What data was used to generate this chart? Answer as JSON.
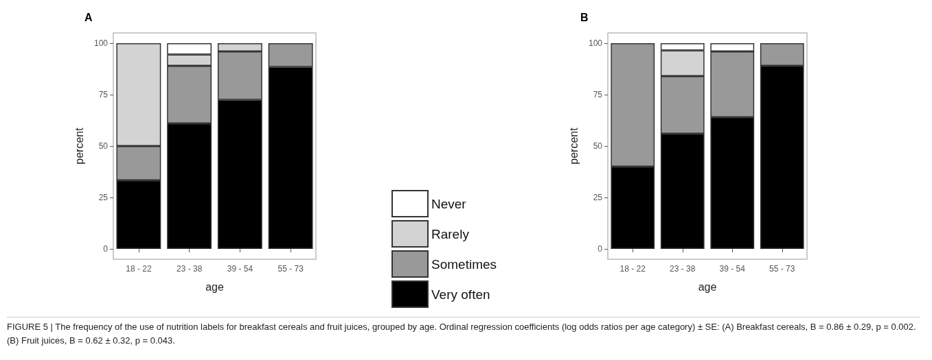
{
  "chart_data": [
    {
      "type": "bar",
      "title": "A",
      "xlabel": "age",
      "ylabel": "percent",
      "categories": [
        "18 - 22",
        "23 - 38",
        "39 - 54",
        "55 - 73"
      ],
      "stacked": true,
      "grid": false,
      "legend": "right",
      "series": [
        {
          "name": "Very often",
          "color": "#000000",
          "values": [
            33.3,
            61,
            72.5,
            88.5
          ]
        },
        {
          "name": "Sometimes",
          "color": "#999999",
          "values": [
            16.7,
            28,
            23.5,
            11.5
          ]
        },
        {
          "name": "Rarely",
          "color": "#d3d3d3",
          "values": [
            50,
            5.5,
            4,
            0
          ]
        },
        {
          "name": "Never",
          "color": "#ffffff",
          "values": [
            0,
            5.5,
            0,
            0
          ]
        }
      ],
      "ylim": [
        -5,
        105
      ],
      "yticks": [
        0,
        25,
        50,
        75,
        100
      ],
      "annotations": [
        "FIGURE 5 | The frequency of the use of nutrition labels for breakfast cereals and fruit juices, grouped by age. Ordinal regression coefficients (log odds ratios per age category) ± SE: (A) Breakfast cereals, B = 0.86 ± 0.29, p = 0.002. (B) Fruit juices, B = 0.62 ± 0.32, p = 0.043."
      ]
    },
    {
      "type": "bar",
      "title": "B",
      "xlabel": "age",
      "ylabel": "percent",
      "categories": [
        "18 - 22",
        "23 - 38",
        "39 - 54",
        "55 - 73"
      ],
      "stacked": true,
      "grid": false,
      "legend": false,
      "series": [
        {
          "color": "#000000",
          "values": [
            40,
            56,
            64,
            89
          ]
        },
        {
          "color": "#999999",
          "values": [
            60,
            28,
            32,
            11
          ]
        },
        {
          "color": "#d3d3d3",
          "values": [
            0,
            12.5,
            0,
            0
          ]
        },
        {
          "color": "#ffffff",
          "values": [
            0,
            3.5,
            4,
            0
          ]
        }
      ],
      "ylim": [
        -5,
        105
      ],
      "yticks": [
        0,
        25,
        50,
        75,
        100
      ]
    }
  ]
}
